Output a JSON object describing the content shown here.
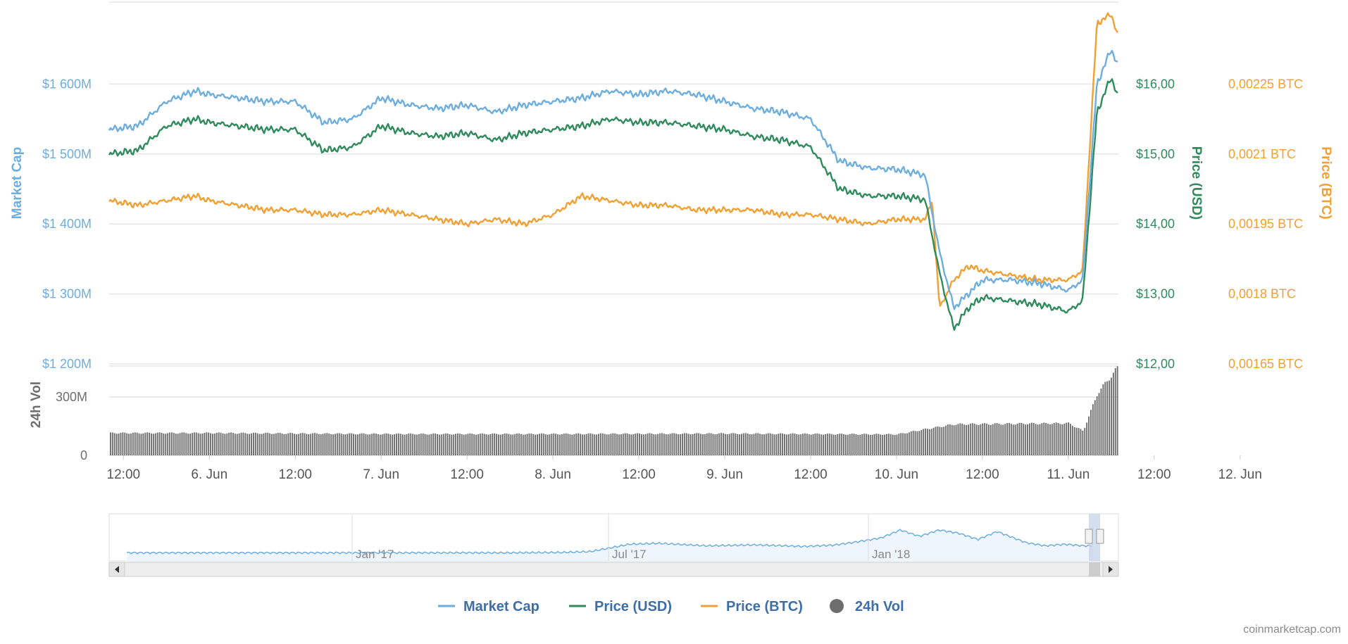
{
  "chart_data": {
    "type": "line",
    "panels": {
      "main": {
        "y_axes": {
          "market_cap": {
            "label": "Market Cap",
            "ticks": [
              "$1 200M",
              "$1 300M",
              "$1 400M",
              "$1 500M",
              "$1 600M"
            ],
            "range": [
              1200,
              1700
            ],
            "unit": "M USD",
            "color": "#6daedf"
          },
          "price_usd": {
            "label": "Price (USD)",
            "ticks": [
              "$12,00",
              "$13,00",
              "$14,00",
              "$15,00",
              "$16,00"
            ],
            "range": [
              12,
              17
            ],
            "color": "#2f8b5c"
          },
          "price_btc": {
            "label": "Price (BTC)",
            "ticks": [
              "0,00165 BTC",
              "0,0018 BTC",
              "0,00195 BTC",
              "0,0021 BTC",
              "0,00225 BTC"
            ],
            "range": [
              0.00165,
              0.0024
            ],
            "color": "#f2a033"
          }
        }
      },
      "volume": {
        "label": "24h Vol",
        "ticks": [
          "0",
          "300M"
        ],
        "range": [
          0,
          460
        ],
        "color": "#6e6e6e"
      }
    },
    "x_axis": {
      "ticks": [
        "12:00",
        "6. Jun",
        "12:00",
        "7. Jun",
        "12:00",
        "8. Jun",
        "12:00",
        "9. Jun",
        "12:00",
        "10. Jun",
        "12:00",
        "11. Jun",
        "12:00",
        "12. Jun"
      ],
      "range_hours": [
        -14,
        127
      ]
    },
    "series": [
      {
        "name": "Market Cap",
        "axis": "market_cap",
        "x": [
          -14,
          -10,
          -6,
          -2,
          0,
          4,
          8,
          12,
          16,
          20,
          24,
          28,
          32,
          36,
          40,
          44,
          48,
          52,
          56,
          60,
          64,
          68,
          72,
          76,
          80,
          84,
          88,
          92,
          96,
          100,
          102,
          104,
          106,
          108,
          112,
          116,
          120,
          122,
          124,
          126,
          127
        ],
        "values": [
          1535,
          1540,
          1575,
          1590,
          1585,
          1580,
          1575,
          1575,
          1545,
          1550,
          1580,
          1570,
          1565,
          1570,
          1560,
          1570,
          1575,
          1580,
          1590,
          1585,
          1590,
          1585,
          1575,
          1565,
          1560,
          1550,
          1490,
          1480,
          1478,
          1470,
          1360,
          1280,
          1300,
          1320,
          1320,
          1315,
          1305,
          1320,
          1600,
          1650,
          1625
        ]
      },
      {
        "name": "Price (USD)",
        "axis": "price_usd",
        "x": [
          -14,
          -10,
          -6,
          -2,
          0,
          4,
          8,
          12,
          16,
          20,
          24,
          28,
          32,
          36,
          40,
          44,
          48,
          52,
          56,
          60,
          64,
          68,
          72,
          76,
          80,
          84,
          88,
          92,
          96,
          100,
          102,
          104,
          106,
          108,
          112,
          116,
          120,
          122,
          124,
          126,
          127
        ],
        "values": [
          15.0,
          15.05,
          15.4,
          15.5,
          15.45,
          15.4,
          15.35,
          15.35,
          15.05,
          15.1,
          15.4,
          15.3,
          15.25,
          15.3,
          15.2,
          15.3,
          15.35,
          15.4,
          15.5,
          15.45,
          15.45,
          15.4,
          15.35,
          15.25,
          15.2,
          15.1,
          14.5,
          14.4,
          14.4,
          14.35,
          13.3,
          12.5,
          12.8,
          12.95,
          12.9,
          12.85,
          12.75,
          12.9,
          15.6,
          16.1,
          15.8
        ]
      },
      {
        "name": "Price (BTC)",
        "axis": "price_btc",
        "x": [
          -14,
          -10,
          -6,
          -2,
          0,
          4,
          8,
          12,
          16,
          20,
          24,
          28,
          32,
          36,
          40,
          44,
          48,
          52,
          56,
          60,
          64,
          68,
          72,
          76,
          80,
          84,
          88,
          92,
          96,
          100,
          101,
          102,
          104,
          106,
          108,
          112,
          116,
          120,
          122,
          124,
          126,
          127
        ],
        "values": [
          0.002,
          0.00199,
          0.002,
          0.00201,
          0.002,
          0.00199,
          0.00198,
          0.00198,
          0.00197,
          0.00197,
          0.00198,
          0.00197,
          0.00196,
          0.00195,
          0.00196,
          0.00195,
          0.00197,
          0.00201,
          0.002,
          0.00199,
          0.00199,
          0.00198,
          0.00198,
          0.00198,
          0.00197,
          0.00197,
          0.00196,
          0.00195,
          0.00196,
          0.00196,
          0.002,
          0.00177,
          0.00183,
          0.00186,
          0.00185,
          0.00184,
          0.00183,
          0.00183,
          0.00185,
          0.00238,
          0.0024,
          0.00235
        ]
      },
      {
        "name": "24h Vol",
        "axis": "volume",
        "x": [
          -14,
          0,
          24,
          48,
          72,
          96,
          100,
          104,
          120,
          122,
          124,
          127
        ],
        "values": [
          115,
          115,
          110,
          110,
          112,
          108,
          135,
          160,
          165,
          125,
          320,
          460
        ]
      }
    ],
    "legend": {
      "position": "bottom-center",
      "items": [
        "Market Cap",
        "Price (USD)",
        "Price (BTC)",
        "24h Vol"
      ]
    },
    "navigator": {
      "labels": [
        "Jan '17",
        "Jul '17",
        "Jan '18"
      ]
    },
    "grid": true
  },
  "attribution": "coinmarketcap.com",
  "colors": {
    "market_cap": "#6daedf",
    "price_usd": "#2f8b5c",
    "price_btc": "#f2a033",
    "volume": "#6e6e6e",
    "grid": "#e6e6e6"
  }
}
